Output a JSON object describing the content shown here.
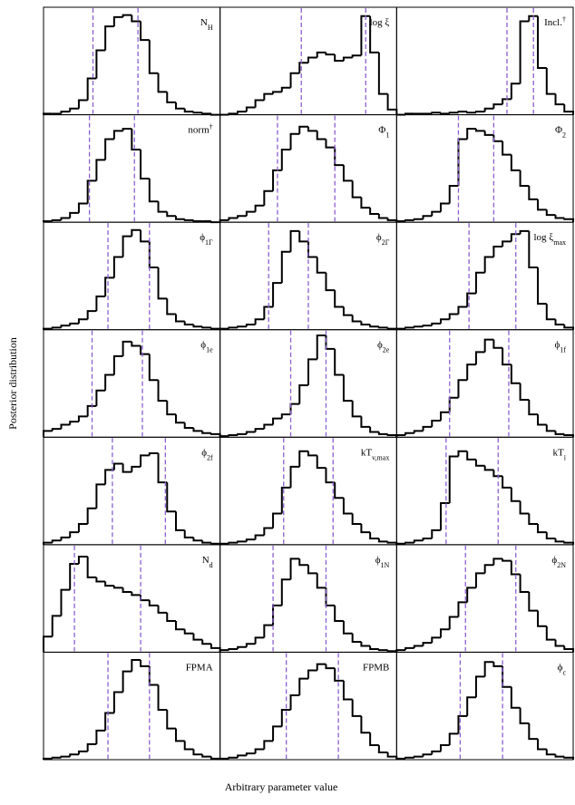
{
  "chart_data": [
    {
      "type": "histogram",
      "title": "N",
      "subscript": "H",
      "bins": [
        0,
        1,
        2,
        3,
        4,
        5,
        6,
        7,
        8,
        9,
        10,
        11,
        12,
        13,
        14,
        15,
        16,
        17,
        18,
        19,
        20
      ],
      "values": [
        1,
        1,
        3,
        6,
        14,
        35,
        62,
        85,
        94,
        96,
        90,
        72,
        40,
        22,
        12,
        6,
        3,
        2,
        1,
        0
      ],
      "lines": [
        5.6,
        10.7
      ],
      "xlim": [
        0,
        20
      ],
      "ylim": [
        0,
        100
      ],
      "color": "#000000",
      "line_color": "#8a5fd0"
    },
    {
      "type": "histogram",
      "title": "log ξ",
      "bins": [
        0,
        1,
        2,
        3,
        4,
        5,
        6,
        7,
        8,
        9,
        10,
        11,
        12,
        13,
        14,
        15,
        16,
        17,
        18,
        19,
        20
      ],
      "values": [
        0,
        1,
        3,
        7,
        14,
        20,
        22,
        26,
        40,
        50,
        55,
        60,
        58,
        52,
        55,
        57,
        95,
        60,
        20,
        5
      ],
      "lines": [
        9.2,
        16.5
      ],
      "xlim": [
        0,
        20
      ],
      "ylim": [
        0,
        100
      ],
      "color": "#000000",
      "line_color": "#8a5fd0"
    },
    {
      "type": "histogram",
      "title": "Incl.",
      "superscript": "†",
      "bins": [
        0,
        1,
        2,
        3,
        4,
        5,
        6,
        7,
        8,
        9,
        10,
        11,
        12,
        13,
        14,
        15,
        16,
        17,
        18,
        19,
        20
      ],
      "values": [
        0,
        1,
        1,
        1,
        2,
        1,
        2,
        3,
        2,
        3,
        6,
        10,
        15,
        30,
        90,
        95,
        45,
        20,
        10,
        3
      ],
      "lines": [
        12.5,
        15.5
      ],
      "xlim": [
        0,
        20
      ],
      "ylim": [
        0,
        100
      ],
      "color": "#000000",
      "line_color": "#8a5fd0"
    },
    {
      "type": "histogram",
      "title": "norm",
      "superscript": "†",
      "bins": [
        0,
        1,
        2,
        3,
        4,
        5,
        6,
        7,
        8,
        9,
        10,
        11,
        12,
        13,
        14,
        15,
        16,
        17,
        18,
        19,
        20
      ],
      "values": [
        1,
        2,
        4,
        9,
        18,
        40,
        60,
        80,
        88,
        90,
        70,
        42,
        20,
        10,
        6,
        3,
        2,
        1,
        1,
        0
      ],
      "lines": [
        5.2,
        10.3
      ],
      "xlim": [
        0,
        20
      ],
      "ylim": [
        0,
        100
      ],
      "color": "#000000",
      "line_color": "#8a5fd0"
    },
    {
      "type": "histogram",
      "title": "Φ",
      "subscript": "1",
      "bins": [
        0,
        1,
        2,
        3,
        4,
        5,
        6,
        7,
        8,
        9,
        10,
        11,
        12,
        13,
        14,
        15,
        16,
        17,
        18,
        19,
        20
      ],
      "values": [
        2,
        4,
        6,
        10,
        16,
        30,
        50,
        70,
        85,
        92,
        88,
        80,
        72,
        55,
        40,
        24,
        14,
        8,
        4,
        2
      ],
      "lines": [
        6.5,
        13
      ],
      "xlim": [
        0,
        20
      ],
      "ylim": [
        0,
        100
      ],
      "color": "#000000",
      "line_color": "#8a5fd0"
    },
    {
      "type": "histogram",
      "title": "Φ",
      "subscript": "2",
      "bins": [
        0,
        1,
        2,
        3,
        4,
        5,
        6,
        7,
        8,
        9,
        10,
        11,
        12,
        13,
        14,
        15,
        16,
        17,
        18,
        19,
        20
      ],
      "values": [
        1,
        2,
        3,
        6,
        10,
        18,
        35,
        80,
        90,
        88,
        84,
        78,
        65,
        50,
        35,
        22,
        12,
        7,
        4,
        3
      ],
      "lines": [
        7,
        11
      ],
      "xlim": [
        0,
        20
      ],
      "ylim": [
        0,
        100
      ],
      "color": "#000000",
      "line_color": "#8a5fd0"
    },
    {
      "type": "histogram",
      "title": "ϕ",
      "subscript": "1Γ",
      "bins": [
        0,
        1,
        2,
        3,
        4,
        5,
        6,
        7,
        8,
        9,
        10,
        11,
        12,
        13,
        14,
        15,
        16,
        17,
        18,
        19,
        20
      ],
      "values": [
        1,
        2,
        4,
        6,
        10,
        18,
        32,
        50,
        70,
        90,
        96,
        85,
        60,
        30,
        15,
        8,
        5,
        3,
        2,
        1
      ],
      "lines": [
        7.3,
        12
      ],
      "xlim": [
        0,
        20
      ],
      "ylim": [
        0,
        100
      ],
      "color": "#000000",
      "line_color": "#8a5fd0"
    },
    {
      "type": "histogram",
      "title": "ϕ",
      "subscript": "2Γ",
      "bins": [
        0,
        1,
        2,
        3,
        4,
        5,
        6,
        7,
        8,
        9,
        10,
        11,
        12,
        13,
        14,
        15,
        16,
        17,
        18,
        19,
        20
      ],
      "values": [
        1,
        2,
        3,
        5,
        10,
        22,
        45,
        75,
        95,
        85,
        70,
        55,
        38,
        22,
        14,
        8,
        5,
        3,
        2,
        1
      ],
      "lines": [
        5.5,
        10
      ],
      "xlim": [
        0,
        20
      ],
      "ylim": [
        0,
        100
      ],
      "color": "#000000",
      "line_color": "#8a5fd0"
    },
    {
      "type": "histogram",
      "title": "log ξ",
      "subscript": "max",
      "bins": [
        0,
        1,
        2,
        3,
        4,
        5,
        6,
        7,
        8,
        9,
        10,
        11,
        12,
        13,
        14,
        15,
        16,
        17,
        18,
        19,
        20
      ],
      "values": [
        1,
        2,
        3,
        4,
        6,
        10,
        15,
        22,
        35,
        55,
        70,
        80,
        85,
        92,
        95,
        60,
        25,
        10,
        5,
        2
      ],
      "lines": [
        8.2,
        13.5
      ],
      "xlim": [
        0,
        20
      ],
      "ylim": [
        0,
        100
      ],
      "color": "#000000",
      "line_color": "#8a5fd0"
    },
    {
      "type": "histogram",
      "title": "ϕ",
      "subscript": "1e",
      "bins": [
        0,
        1,
        2,
        3,
        4,
        5,
        6,
        7,
        8,
        9,
        10,
        11,
        12,
        13,
        14,
        15,
        16,
        17,
        18,
        19,
        20
      ],
      "values": [
        6,
        8,
        12,
        15,
        20,
        30,
        45,
        60,
        78,
        92,
        88,
        80,
        55,
        35,
        22,
        14,
        9,
        6,
        4,
        3
      ],
      "lines": [
        5.5,
        11.2
      ],
      "xlim": [
        0,
        20
      ],
      "ylim": [
        0,
        100
      ],
      "color": "#000000",
      "line_color": "#8a5fd0"
    },
    {
      "type": "histogram",
      "title": "ϕ",
      "subscript": "2e",
      "bins": [
        0,
        1,
        2,
        3,
        4,
        5,
        6,
        7,
        8,
        9,
        10,
        11,
        12,
        13,
        14,
        15,
        16,
        17,
        18,
        19,
        20
      ],
      "values": [
        1,
        2,
        3,
        5,
        8,
        12,
        18,
        22,
        32,
        50,
        75,
        98,
        85,
        60,
        35,
        20,
        10,
        5,
        3,
        2
      ],
      "lines": [
        8,
        12
      ],
      "xlim": [
        0,
        20
      ],
      "ylim": [
        0,
        100
      ],
      "color": "#000000",
      "line_color": "#8a5fd0"
    },
    {
      "type": "histogram",
      "title": "ϕ",
      "subscript": "1f",
      "bins": [
        0,
        1,
        2,
        3,
        4,
        5,
        6,
        7,
        8,
        9,
        10,
        11,
        12,
        13,
        14,
        15,
        16,
        17,
        18,
        19,
        20
      ],
      "values": [
        2,
        4,
        6,
        10,
        16,
        24,
        38,
        55,
        70,
        82,
        94,
        86,
        70,
        52,
        36,
        22,
        12,
        6,
        3,
        2
      ],
      "lines": [
        6,
        12.7
      ],
      "xlim": [
        0,
        20
      ],
      "ylim": [
        0,
        100
      ],
      "color": "#000000",
      "line_color": "#8a5fd0"
    },
    {
      "type": "histogram",
      "title": "ϕ",
      "subscript": "2f",
      "bins": [
        0,
        1,
        2,
        3,
        4,
        5,
        6,
        7,
        8,
        9,
        10,
        11,
        12,
        13,
        14,
        15,
        16,
        17,
        18,
        19,
        20
      ],
      "values": [
        2,
        4,
        7,
        12,
        20,
        35,
        58,
        72,
        78,
        70,
        75,
        86,
        88,
        60,
        32,
        14,
        7,
        4,
        2,
        1
      ],
      "lines": [
        7.8,
        13.8
      ],
      "xlim": [
        0,
        20
      ],
      "ylim": [
        0,
        100
      ],
      "color": "#000000",
      "line_color": "#8a5fd0"
    },
    {
      "type": "histogram",
      "title": "kT",
      "subscript": "v,max",
      "bins": [
        0,
        1,
        2,
        3,
        4,
        5,
        6,
        7,
        8,
        9,
        10,
        11,
        12,
        13,
        14,
        15,
        16,
        17,
        18,
        19,
        20
      ],
      "values": [
        1,
        2,
        3,
        5,
        9,
        16,
        30,
        55,
        75,
        90,
        86,
        74,
        60,
        45,
        30,
        20,
        12,
        6,
        3,
        2
      ],
      "lines": [
        7.2,
        12.8
      ],
      "xlim": [
        0,
        20
      ],
      "ylim": [
        0,
        100
      ],
      "color": "#000000",
      "line_color": "#8a5fd0"
    },
    {
      "type": "histogram",
      "title": "kT",
      "subscript": "i",
      "bins": [
        0,
        1,
        2,
        3,
        4,
        5,
        6,
        7,
        8,
        9,
        10,
        11,
        12,
        13,
        14,
        15,
        16,
        17,
        18,
        19,
        20
      ],
      "values": [
        1,
        2,
        4,
        6,
        14,
        40,
        85,
        90,
        82,
        76,
        72,
        66,
        55,
        42,
        30,
        20,
        12,
        6,
        3,
        2
      ],
      "lines": [
        5.6,
        11.5
      ],
      "xlim": [
        0,
        20
      ],
      "ylim": [
        0,
        100
      ],
      "color": "#000000",
      "line_color": "#8a5fd0"
    },
    {
      "type": "histogram",
      "title": "N",
      "subscript": "d",
      "bins": [
        0,
        1,
        2,
        3,
        4,
        5,
        6,
        7,
        8,
        9,
        10,
        11,
        12,
        13,
        14,
        15,
        16,
        17,
        18,
        19,
        20
      ],
      "values": [
        15,
        35,
        60,
        85,
        92,
        72,
        68,
        64,
        62,
        58,
        55,
        50,
        45,
        38,
        30,
        22,
        18,
        12,
        8,
        4
      ],
      "lines": [
        3.5,
        11
      ],
      "xlim": [
        0,
        20
      ],
      "ylim": [
        0,
        100
      ],
      "color": "#000000",
      "line_color": "#8a5fd0"
    },
    {
      "type": "histogram",
      "title": "ϕ",
      "subscript": "1N",
      "bins": [
        0,
        1,
        2,
        3,
        4,
        5,
        6,
        7,
        8,
        9,
        10,
        11,
        12,
        13,
        14,
        15,
        16,
        17,
        18,
        19,
        20
      ],
      "values": [
        2,
        3,
        5,
        8,
        14,
        26,
        45,
        70,
        90,
        84,
        76,
        62,
        45,
        30,
        18,
        10,
        6,
        3,
        2,
        1
      ],
      "lines": [
        6,
        12
      ],
      "xlim": [
        0,
        20
      ],
      "ylim": [
        0,
        100
      ],
      "color": "#000000",
      "line_color": "#8a5fd0"
    },
    {
      "type": "histogram",
      "title": "ϕ",
      "subscript": "2N",
      "bins": [
        0,
        1,
        2,
        3,
        4,
        5,
        6,
        7,
        8,
        9,
        10,
        11,
        12,
        13,
        14,
        15,
        16,
        17,
        18,
        19,
        20
      ],
      "values": [
        2,
        4,
        6,
        9,
        14,
        22,
        34,
        48,
        62,
        76,
        84,
        90,
        88,
        75,
        58,
        40,
        25,
        12,
        6,
        3
      ],
      "lines": [
        7.8,
        13.5
      ],
      "xlim": [
        0,
        20
      ],
      "ylim": [
        0,
        100
      ],
      "color": "#000000",
      "line_color": "#8a5fd0"
    },
    {
      "type": "histogram",
      "title": "FPMA",
      "bins": [
        0,
        1,
        2,
        3,
        4,
        5,
        6,
        7,
        8,
        9,
        10,
        11,
        12,
        13,
        14,
        15,
        16,
        17,
        18,
        19,
        20
      ],
      "values": [
        1,
        2,
        3,
        5,
        8,
        15,
        28,
        45,
        65,
        85,
        96,
        90,
        72,
        48,
        30,
        18,
        10,
        5,
        3,
        1
      ],
      "lines": [
        7.3,
        12
      ],
      "xlim": [
        0,
        20
      ],
      "ylim": [
        0,
        100
      ],
      "color": "#000000",
      "line_color": "#8a5fd0"
    },
    {
      "type": "histogram",
      "title": "FPMB",
      "bins": [
        0,
        1,
        2,
        3,
        4,
        5,
        6,
        7,
        8,
        9,
        10,
        11,
        12,
        13,
        14,
        15,
        16,
        17,
        18,
        19,
        20
      ],
      "values": [
        1,
        2,
        4,
        6,
        10,
        18,
        32,
        48,
        62,
        78,
        86,
        92,
        88,
        76,
        58,
        42,
        26,
        14,
        7,
        3
      ],
      "lines": [
        7.5,
        13.4
      ],
      "xlim": [
        0,
        20
      ],
      "ylim": [
        0,
        100
      ],
      "color": "#000000",
      "line_color": "#8a5fd0"
    },
    {
      "type": "histogram",
      "title": "ϕ",
      "subscript": "c",
      "bins": [
        0,
        1,
        2,
        3,
        4,
        5,
        6,
        7,
        8,
        9,
        10,
        11,
        12,
        13,
        14,
        15,
        16,
        17,
        18,
        19,
        20
      ],
      "values": [
        1,
        2,
        3,
        5,
        8,
        14,
        25,
        42,
        60,
        80,
        94,
        90,
        70,
        50,
        35,
        20,
        10,
        5,
        3,
        2
      ],
      "lines": [
        7.2,
        12
      ],
      "xlim": [
        0,
        20
      ],
      "ylim": [
        0,
        100
      ],
      "color": "#000000",
      "line_color": "#8a5fd0"
    }
  ],
  "xlabel": "Arbitrary parameter value",
  "ylabel": "Posterior distribution"
}
